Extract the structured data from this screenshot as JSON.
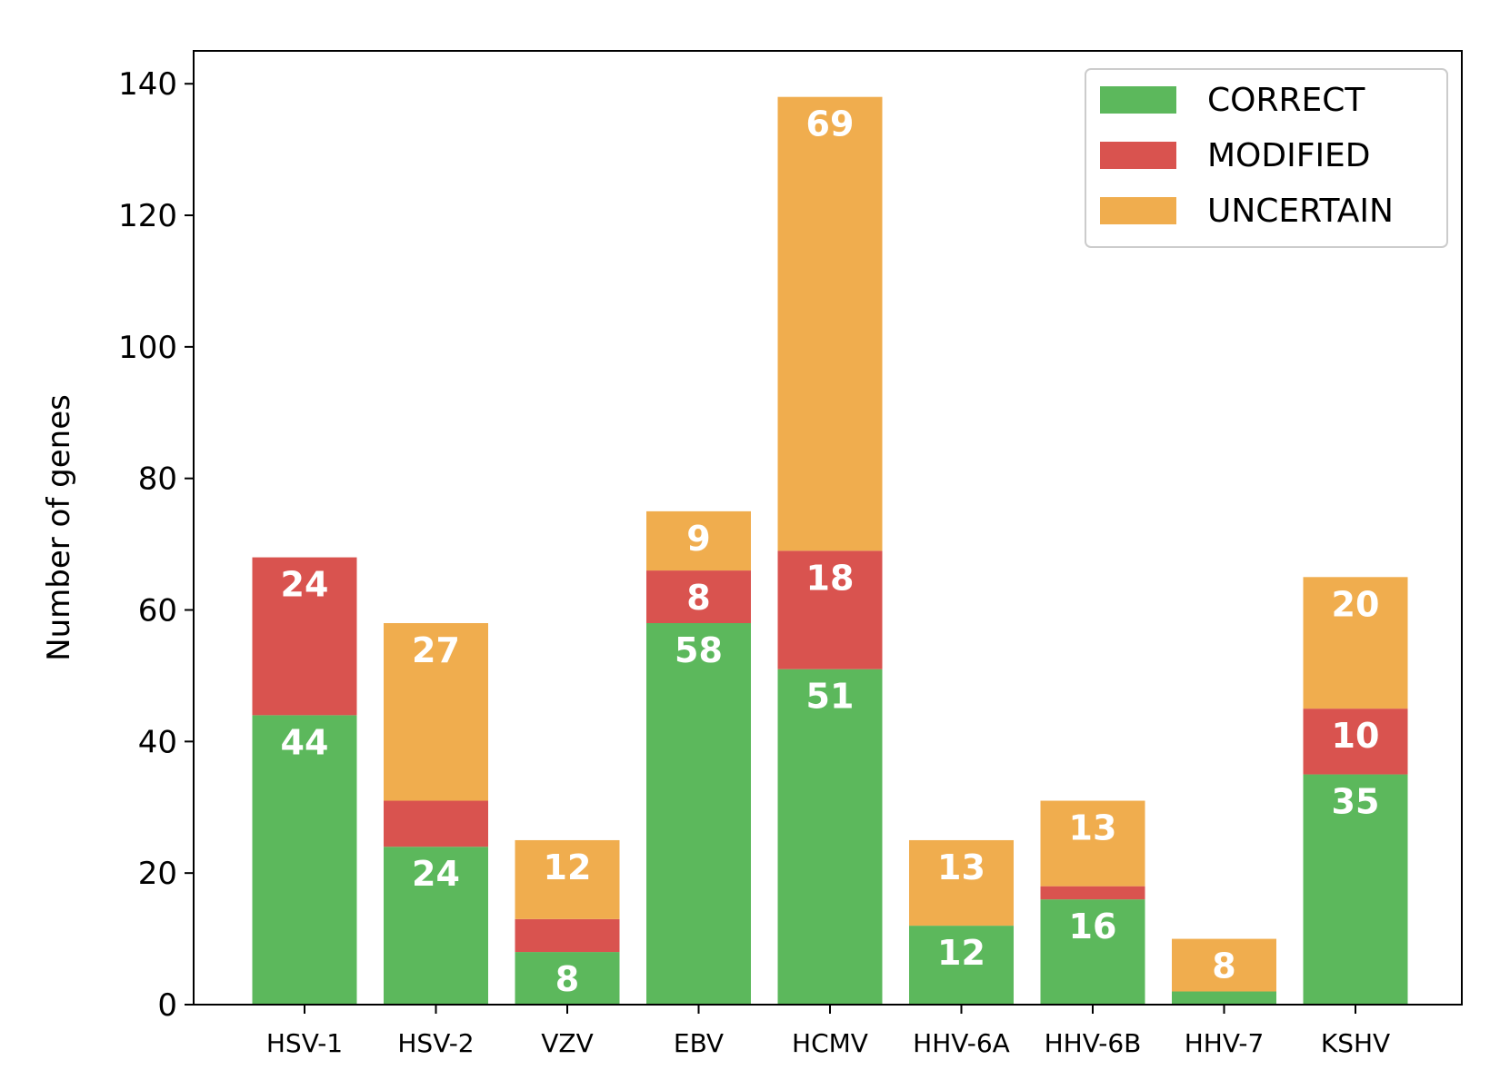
{
  "chart_data": {
    "type": "bar",
    "stacked": true,
    "title": "",
    "xlabel": "",
    "ylabel": "Number of genes",
    "ylim": [
      0,
      145
    ],
    "yticks": [
      0,
      20,
      40,
      60,
      80,
      100,
      120,
      140
    ],
    "grid": false,
    "legend_position": "top-right",
    "categories": [
      "HSV-1",
      "HSV-2",
      "VZV",
      "EBV",
      "HCMV",
      "HHV-6A",
      "HHV-6B",
      "HHV-7",
      "KSHV"
    ],
    "series": [
      {
        "name": "CORRECT",
        "color": "#5cb85c",
        "values": [
          44,
          24,
          8,
          58,
          51,
          12,
          16,
          2,
          35
        ],
        "labels": [
          "44",
          "24",
          "8",
          "58",
          "51",
          "12",
          "16",
          "",
          "35"
        ]
      },
      {
        "name": "MODIFIED",
        "color": "#d9534f",
        "values": [
          24,
          7,
          5,
          8,
          18,
          0,
          2,
          0,
          10
        ],
        "labels": [
          "24",
          "",
          "",
          "8",
          "18",
          "",
          "",
          "",
          "10"
        ]
      },
      {
        "name": "UNCERTAIN",
        "color": "#f0ad4e",
        "values": [
          0,
          27,
          12,
          9,
          69,
          13,
          13,
          8,
          20
        ],
        "labels": [
          "",
          "27",
          "12",
          "9",
          "69",
          "13",
          "13",
          "8",
          "20"
        ]
      }
    ]
  }
}
